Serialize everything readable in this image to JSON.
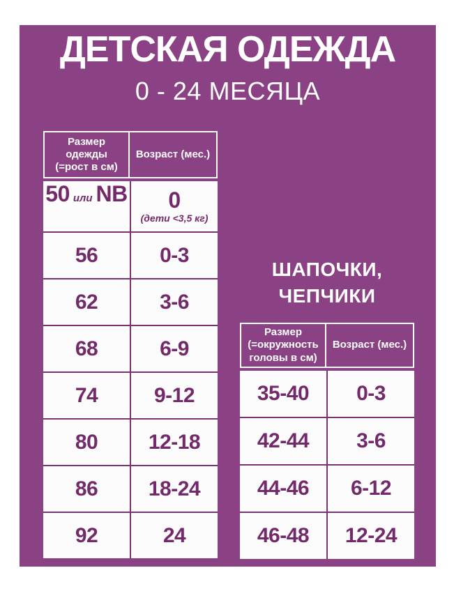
{
  "header": {
    "title": "ДЕТСКАЯ ОДЕЖДА",
    "subtitle": "0 - 24 МЕСЯЦА"
  },
  "display": {
    "clothing_header_size": "Размер\nодежды\n(=рост в см)",
    "clothing_header_age": "Возраст (мес.)",
    "newborn": {
      "size_value": "50",
      "size_conj": "или",
      "size_alt": "NB",
      "age_value": "0",
      "age_note": "(дети <3,5 кг)"
    },
    "hats_title": "ШАПОЧКИ,\nЧЕПЧИКИ",
    "hats_header_size": "Размер\n(=окружность\nголовы в см)",
    "hats_header_age": "Возраст (мес.)"
  },
  "colors": {
    "poster_background": "#8B4284",
    "cell_background": "#FDFCFD",
    "grid_line": "#7B3172",
    "data_text": "#732A6A",
    "header_text": "#FFFFFF"
  },
  "chart_data": [
    {
      "type": "table",
      "title": "ДЕТСКАЯ ОДЕЖДА 0 - 24 МЕСЯЦА",
      "columns": [
        "Размер одежды (=рост в см)",
        "Возраст (мес.)"
      ],
      "rows": [
        [
          "50 или NB",
          "0 (дети <3,5 кг)"
        ],
        [
          "56",
          "0-3"
        ],
        [
          "62",
          "3-6"
        ],
        [
          "68",
          "6-9"
        ],
        [
          "74",
          "9-12"
        ],
        [
          "80",
          "12-18"
        ],
        [
          "86",
          "18-24"
        ],
        [
          "92",
          "24"
        ]
      ]
    },
    {
      "type": "table",
      "title": "ШАПОЧКИ, ЧЕПЧИКИ",
      "columns": [
        "Размер (=окружность головы в см)",
        "Возраст (мес.)"
      ],
      "rows": [
        [
          "35-40",
          "0-3"
        ],
        [
          "42-44",
          "3-6"
        ],
        [
          "44-46",
          "6-12"
        ],
        [
          "46-48",
          "12-24"
        ]
      ]
    }
  ]
}
